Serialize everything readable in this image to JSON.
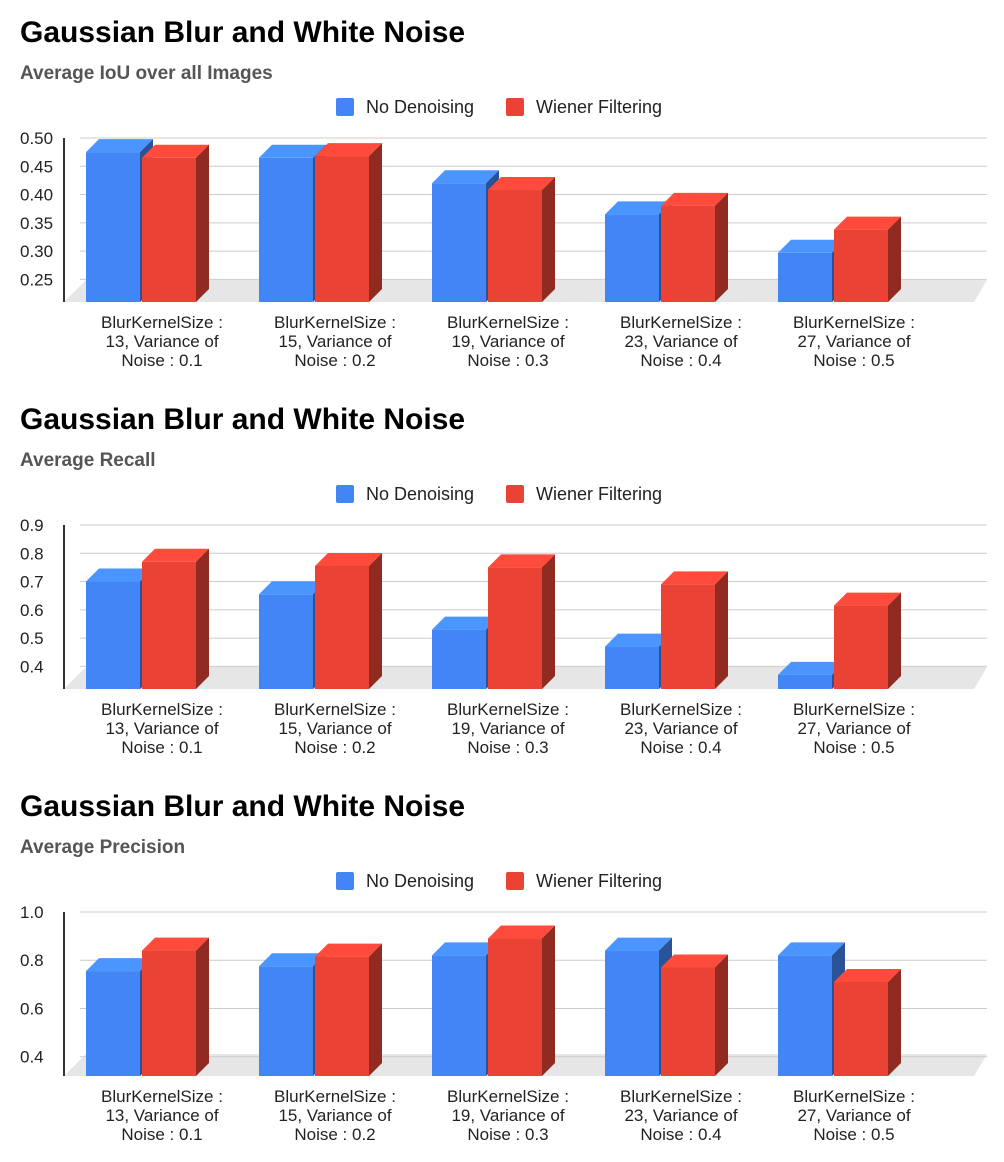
{
  "chart_data": [
    {
      "type": "bar",
      "title": "Gaussian Blur and White Noise",
      "subtitle": "Average IoU over all Images",
      "xlabel": "",
      "ylabel": "",
      "categories": [
        [
          "BlurKernelSize :",
          "13, Variance of",
          "Noise : 0.1"
        ],
        [
          "BlurKernelSize :",
          "15, Variance of",
          "Noise : 0.2"
        ],
        [
          "BlurKernelSize :",
          "19, Variance of",
          "Noise : 0.3"
        ],
        [
          "BlurKernelSize :",
          "23, Variance of",
          "Noise : 0.4"
        ],
        [
          "BlurKernelSize :",
          "27, Variance of",
          "Noise : 0.5"
        ]
      ],
      "series": [
        {
          "name": "No Denoising",
          "color": "#4285F4",
          "values": [
            0.475,
            0.465,
            0.42,
            0.365,
            0.297
          ]
        },
        {
          "name": "Wiener Filtering",
          "color": "#EA4335",
          "values": [
            0.465,
            0.468,
            0.408,
            0.38,
            0.338
          ]
        }
      ],
      "yticks": [
        0.25,
        0.3,
        0.35,
        0.4,
        0.45,
        0.5
      ],
      "ytick_labels": [
        "0.25",
        "0.30",
        "0.35",
        "0.40",
        "0.45",
        "0.50"
      ],
      "ylim": [
        0.21,
        0.5
      ],
      "grid": true,
      "legend_position": "top-center"
    },
    {
      "type": "bar",
      "title": "Gaussian Blur and White Noise",
      "subtitle": "Average Recall",
      "xlabel": "",
      "ylabel": "",
      "categories": [
        [
          "BlurKernelSize :",
          "13, Variance of",
          "Noise : 0.1"
        ],
        [
          "BlurKernelSize :",
          "15, Variance of",
          "Noise : 0.2"
        ],
        [
          "BlurKernelSize :",
          "19, Variance of",
          "Noise : 0.3"
        ],
        [
          "BlurKernelSize :",
          "23, Variance of",
          "Noise : 0.4"
        ],
        [
          "BlurKernelSize :",
          "27, Variance of",
          "Noise : 0.5"
        ]
      ],
      "series": [
        {
          "name": "No Denoising",
          "color": "#4285F4",
          "values": [
            0.7,
            0.655,
            0.53,
            0.47,
            0.37
          ]
        },
        {
          "name": "Wiener Filtering",
          "color": "#EA4335",
          "values": [
            0.77,
            0.755,
            0.75,
            0.69,
            0.615
          ]
        }
      ],
      "yticks": [
        0.4,
        0.5,
        0.6,
        0.7,
        0.8,
        0.9
      ],
      "ytick_labels": [
        "0.4",
        "0.5",
        "0.6",
        "0.7",
        "0.8",
        "0.9"
      ],
      "ylim": [
        0.32,
        0.9
      ],
      "grid": true,
      "legend_position": "top-center"
    },
    {
      "type": "bar",
      "title": "Gaussian Blur and White Noise",
      "subtitle": "Average Precision",
      "xlabel": "",
      "ylabel": "",
      "categories": [
        [
          "BlurKernelSize :",
          "13, Variance of",
          "Noise : 0.1"
        ],
        [
          "BlurKernelSize :",
          "15, Variance of",
          "Noise : 0.2"
        ],
        [
          "BlurKernelSize :",
          "19, Variance of",
          "Noise : 0.3"
        ],
        [
          "BlurKernelSize :",
          "23, Variance of",
          "Noise : 0.4"
        ],
        [
          "BlurKernelSize :",
          "27, Variance of",
          "Noise : 0.5"
        ]
      ],
      "series": [
        {
          "name": "No Denoising",
          "color": "#4285F4",
          "values": [
            0.755,
            0.775,
            0.82,
            0.84,
            0.82
          ]
        },
        {
          "name": "Wiener Filtering",
          "color": "#EA4335",
          "values": [
            0.84,
            0.815,
            0.89,
            0.77,
            0.71
          ]
        }
      ],
      "yticks": [
        0.4,
        0.6,
        0.8,
        1.0
      ],
      "ytick_labels": [
        "0.4",
        "0.6",
        "0.8",
        "1.0"
      ],
      "ylim": [
        0.32,
        1.0
      ],
      "grid": true,
      "legend_position": "top-center"
    }
  ]
}
